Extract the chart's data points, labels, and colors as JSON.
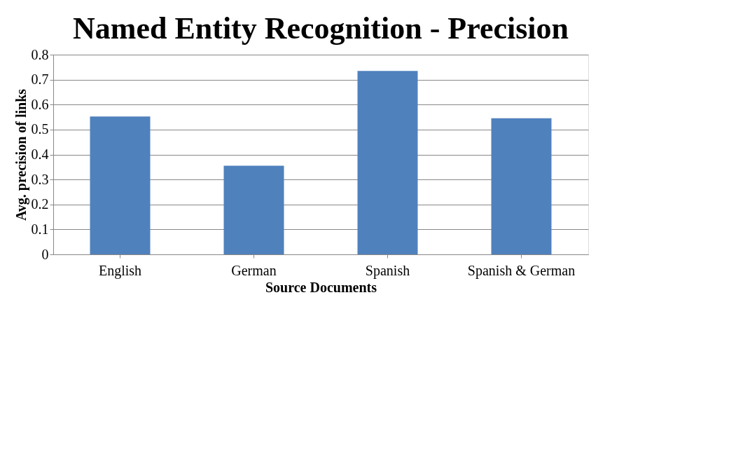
{
  "chart_data": {
    "type": "bar",
    "title": "Named Entity Recognition - Precision",
    "xlabel": "Source Documents",
    "ylabel": "Avg. precision of links",
    "categories": [
      "English",
      "German",
      "Spanish",
      "Spanish & German"
    ],
    "values": [
      0.552,
      0.355,
      0.735,
      0.545
    ],
    "color": "#4f81bd",
    "ylim": [
      0,
      0.8
    ],
    "yticks": [
      0,
      0.1,
      0.2,
      0.3,
      0.4,
      0.5,
      0.6,
      0.7,
      0.8
    ],
    "grid": "y"
  }
}
